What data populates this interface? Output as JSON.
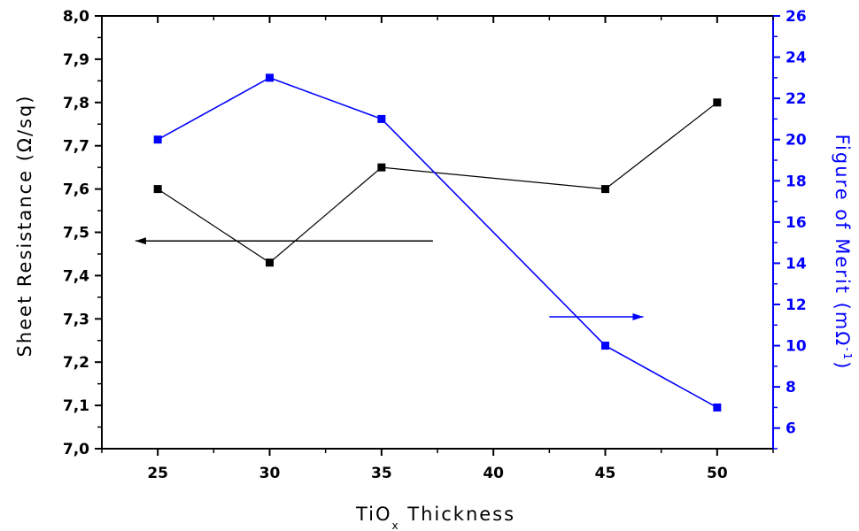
{
  "chart_data": {
    "type": "line",
    "x": [
      25,
      30,
      35,
      45,
      50
    ],
    "xlim": [
      22.5,
      52.5
    ],
    "x_ticks": [
      25,
      30,
      35,
      40,
      45,
      50
    ],
    "xlabel": {
      "main": "TiO",
      "sub": "x",
      "rest": " Thickness"
    },
    "y_left": {
      "label": "Sheet Resistance (Ω/sq)",
      "lim": [
        7.0,
        8.0
      ],
      "ticks": [
        "7,0",
        "7,1",
        "7,2",
        "7,3",
        "7,4",
        "7,5",
        "7,6",
        "7,7",
        "7,8",
        "7,9",
        "8,0"
      ],
      "color": "#000000"
    },
    "y_right": {
      "label": {
        "main": "Figure of Merit (mΩ",
        "sup": "-1",
        "end": ")"
      },
      "lim": [
        5,
        26
      ],
      "ticks": [
        "6",
        "8",
        "10",
        "12",
        "14",
        "16",
        "18",
        "20",
        "22",
        "24",
        "26"
      ],
      "color": "#0000ff"
    },
    "series": [
      {
        "axis": "left",
        "color": "#000000",
        "values": [
          7.6,
          7.43,
          7.65,
          7.6,
          7.8
        ]
      },
      {
        "axis": "right",
        "color": "#0000ff",
        "values": [
          20.0,
          23.0,
          21.0,
          10.0,
          7.0
        ]
      }
    ],
    "annotations": [
      {
        "direction": "left",
        "color": "#000000",
        "x_from": 37.3,
        "x_to": 24.0,
        "y_left": 7.48
      },
      {
        "direction": "right",
        "color": "#0000ff",
        "x_from": 42.5,
        "x_to": 46.7,
        "y_right": 11.4
      }
    ],
    "grid": false,
    "legend": "none"
  }
}
